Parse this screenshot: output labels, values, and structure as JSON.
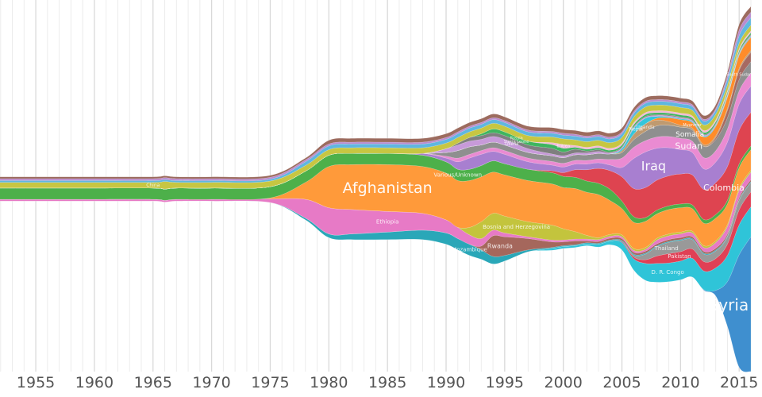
{
  "chart_data": {
    "type": "area",
    "title": "",
    "xlabel": "",
    "ylabel": "",
    "xlim": [
      1951,
      2016
    ],
    "x_ticks": [
      "1955",
      "1960",
      "1965",
      "1970",
      "1975",
      "1980",
      "1985",
      "1990",
      "1995",
      "2000",
      "2005",
      "2010",
      "2015"
    ],
    "grid": true,
    "legend": "none",
    "x": [
      1951,
      1955,
      1960,
      1965,
      1966,
      1967,
      1970,
      1975,
      1978,
      1980,
      1982,
      1985,
      1988,
      1990,
      1991,
      1992,
      1993,
      1994,
      1995,
      1997,
      1999,
      2000,
      2001,
      2002,
      2003,
      2004,
      2005,
      2006,
      2007,
      2008,
      2009,
      2010,
      2011,
      2012,
      2013,
      2014,
      2015,
      2016
    ],
    "series": [
      {
        "name": "Syria",
        "color": "#3f8fcf",
        "label_size": 20,
        "values": [
          0,
          0,
          0,
          0,
          0,
          0,
          0,
          0,
          0,
          0,
          0,
          0,
          0,
          0,
          0,
          0,
          0,
          0,
          0,
          0,
          0,
          0,
          0,
          0,
          0,
          0,
          0,
          0,
          0,
          0,
          0,
          0,
          0,
          0.3,
          3,
          24,
          60,
          72
        ]
      },
      {
        "name": "D. R. Congo",
        "color": "#2fc4d8",
        "label_size": 7,
        "values": [
          0,
          0,
          0,
          0,
          0,
          0,
          0,
          0,
          0,
          0,
          0,
          0,
          0,
          0,
          0,
          0,
          0,
          0,
          0,
          0,
          1,
          1,
          1,
          1,
          1.5,
          2,
          4,
          6,
          9,
          10,
          10,
          10,
          10,
          10,
          12,
          14,
          16,
          16
        ]
      },
      {
        "name": "Pakistan",
        "color": "#e04055",
        "label_size": 7,
        "values": [
          0,
          0,
          0,
          0,
          0,
          0,
          0,
          0,
          0,
          0,
          0,
          0,
          0,
          0,
          0,
          0,
          0,
          0,
          0,
          0,
          0,
          0,
          0,
          0,
          0,
          0,
          0.5,
          1,
          2,
          4,
          5,
          5,
          5,
          5,
          5,
          6,
          8,
          8
        ]
      },
      {
        "name": "Thailand",
        "color": "#999999",
        "label_size": 7,
        "values": [
          0,
          0,
          0,
          0,
          0,
          0,
          0,
          0,
          0,
          0,
          0,
          0,
          0,
          0,
          0,
          0,
          0,
          0,
          0,
          0,
          0,
          0,
          0,
          0,
          0,
          0,
          0,
          1,
          3,
          5,
          6,
          6,
          5,
          4,
          4,
          4,
          5,
          5
        ]
      },
      {
        "name": "Mozambique",
        "color": "#2aa7b8",
        "label_size": 7,
        "values": [
          0,
          0,
          0,
          0,
          0,
          0,
          0,
          0,
          1,
          2,
          3,
          4,
          5,
          6,
          6,
          6,
          5,
          4,
          3,
          1,
          0.5,
          0.5,
          0.5,
          0.5,
          0.5,
          0.5,
          0.5,
          0.5,
          0.5,
          0.5,
          0.5,
          0.5,
          0.5,
          0.5,
          0.5,
          0.5,
          0.5,
          0.5
        ]
      },
      {
        "name": "Rwanda",
        "color": "#a5675c",
        "label_size": 8,
        "values": [
          0,
          0,
          0,
          0,
          0,
          0,
          0,
          0,
          0,
          0,
          0,
          0,
          0,
          0,
          0,
          0,
          2,
          11,
          10,
          6,
          3,
          2,
          2,
          1,
          1,
          1,
          1,
          1,
          1,
          1,
          1,
          1,
          1,
          1,
          1,
          1,
          1,
          1
        ]
      },
      {
        "name": "Ethiopia",
        "color": "#e77ac6",
        "label_size": 7,
        "values": [
          1,
          1,
          1,
          1,
          1,
          1,
          1,
          2,
          10,
          14,
          13,
          11,
          9,
          7,
          6,
          5,
          4,
          3,
          2,
          1,
          1,
          1,
          1,
          1,
          1,
          1,
          1,
          1,
          1,
          2,
          2,
          2,
          2,
          2,
          3,
          4,
          4,
          4
        ]
      },
      {
        "name": "Bosnia and Herzegovina",
        "color": "#c3c43d",
        "label_size": 7,
        "values": [
          0,
          0,
          0,
          0,
          0,
          0,
          0,
          0,
          0,
          0,
          0,
          0,
          0,
          0,
          0,
          4,
          9,
          9,
          9,
          8,
          8,
          6,
          4,
          2,
          1,
          1,
          1,
          1,
          1,
          1,
          1,
          1,
          1,
          1,
          1,
          1,
          1,
          1
        ]
      },
      {
        "name": "Afghanistan",
        "color": "#ff9a3a",
        "label_size": 19,
        "values": [
          0,
          0,
          0,
          0,
          0,
          0,
          0,
          0.5,
          9,
          22,
          24,
          25,
          25,
          25,
          25,
          25,
          24,
          22,
          22,
          22,
          22,
          22,
          23,
          23,
          23,
          18,
          14,
          14,
          14,
          13,
          13,
          13,
          12,
          12,
          12,
          11,
          11,
          11
        ]
      },
      {
        "name": "Various/Unknown",
        "color": "#4db04a",
        "label_size": 7,
        "values": [
          6,
          6,
          6,
          6,
          6,
          6,
          6,
          6,
          6,
          6,
          6,
          6,
          6,
          6,
          6,
          6,
          6,
          6,
          6,
          6,
          6,
          6,
          6,
          6,
          6,
          6,
          4,
          3,
          2,
          2,
          2,
          2,
          2,
          2,
          2,
          2,
          2,
          2
        ]
      },
      {
        "name": "Colombia",
        "color": "#de4450",
        "label_size": 11,
        "values": [
          0,
          0,
          0,
          0,
          0,
          0,
          0,
          0,
          0,
          0,
          0,
          0,
          0,
          0,
          0,
          0,
          0,
          0,
          0,
          0,
          1,
          2,
          4,
          6,
          8,
          10,
          13,
          15,
          16,
          16,
          16,
          16,
          16,
          16,
          17,
          18,
          18,
          18
        ]
      },
      {
        "name": "Iraq",
        "color": "#a87fd0",
        "label_size": 16,
        "values": [
          0,
          0,
          0,
          0,
          0,
          0,
          0,
          0,
          0,
          0,
          0,
          0,
          1,
          2,
          4,
          6,
          6,
          5,
          5,
          4,
          3,
          3,
          3,
          3,
          3,
          3,
          5,
          16,
          19,
          17,
          15,
          13,
          12,
          11,
          11,
          13,
          14,
          14
        ]
      },
      {
        "name": "Sudan",
        "color": "#ea8bd2",
        "label_size": 11,
        "values": [
          0,
          0,
          0,
          0,
          0,
          0,
          0,
          0,
          0,
          0,
          0,
          0,
          0,
          1,
          2,
          2,
          2,
          2,
          2,
          2,
          2,
          2,
          2,
          2,
          2,
          3,
          5,
          6,
          6,
          6,
          6,
          6,
          6,
          6,
          6,
          7,
          7,
          7
        ]
      },
      {
        "name": "Somalia",
        "color": "#8f8f8f",
        "label_size": 9,
        "values": [
          0,
          0,
          0,
          0,
          0,
          0,
          0,
          0,
          0,
          0,
          0,
          0,
          0,
          2,
          4,
          4,
          3,
          3,
          3,
          3,
          3,
          3,
          3,
          3,
          3,
          3,
          3,
          4,
          5,
          6,
          6,
          6,
          6,
          6,
          6,
          6,
          6,
          6
        ]
      },
      {
        "name": "South Sudan",
        "color": "#a66a62",
        "label_size": 5,
        "values": [
          0,
          0,
          0,
          0,
          0,
          0,
          0,
          0,
          0,
          0,
          0,
          0,
          0,
          0,
          0,
          0,
          0,
          0,
          0,
          0,
          0,
          0,
          0,
          0,
          0,
          0,
          0,
          0,
          0,
          0,
          0,
          0,
          0,
          0,
          1,
          4,
          5,
          5
        ]
      },
      {
        "name": "Uganda",
        "color": "#bf9a70",
        "label_size": 6,
        "values": [
          0,
          0,
          0,
          0,
          0,
          0,
          0,
          0,
          0,
          0,
          0,
          0,
          0,
          0,
          0,
          0,
          0,
          0,
          0,
          0,
          0,
          0,
          0,
          0,
          0,
          0,
          1,
          3,
          4,
          3,
          2,
          1,
          1,
          1,
          1,
          1,
          1,
          1
        ]
      },
      {
        "name": "Myanmar",
        "color": "#ff8c2a",
        "label_size": 5,
        "values": [
          0,
          0,
          0,
          0,
          0,
          0,
          0,
          0,
          0,
          0,
          0,
          0,
          0,
          0,
          0,
          0,
          0,
          0,
          0,
          0,
          0,
          0,
          0,
          0,
          0,
          0,
          0,
          0,
          0,
          1,
          2,
          3,
          3,
          4,
          5,
          6,
          7,
          7
        ]
      },
      {
        "name": "Nepal",
        "color": "#33c6dc",
        "label_size": 6,
        "values": [
          0,
          0,
          0,
          0,
          0,
          0,
          0,
          0,
          0,
          0,
          0,
          0,
          0,
          0,
          0,
          0,
          0,
          0,
          0,
          0,
          0,
          0,
          0,
          0,
          0,
          0,
          1,
          3,
          3,
          1,
          0.5,
          0.5,
          0.5,
          0.5,
          0.5,
          0.5,
          0.5,
          0.5
        ]
      },
      {
        "name": "Liberia",
        "color": "#c79ad9",
        "label_size": 5,
        "values": [
          0,
          0,
          0,
          0,
          0,
          0,
          0,
          0,
          0,
          0,
          0,
          0,
          0,
          2,
          3,
          3,
          3,
          3,
          3,
          2,
          1,
          1,
          1,
          1,
          1,
          0.5,
          0.5,
          0.5,
          0.5,
          0.5,
          0.5,
          0.5,
          0.5,
          0.5,
          0.5,
          0.5,
          0.5,
          0.5
        ]
      },
      {
        "name": "Sierra Leone",
        "color": "#7f7f7f",
        "label_size": 5,
        "values": [
          0,
          0,
          0,
          0,
          0,
          0,
          0,
          0,
          0,
          0,
          0,
          0,
          0,
          0,
          1,
          2,
          2,
          2,
          2,
          2,
          3,
          2,
          2,
          1,
          1,
          0.5,
          0.5,
          0.5,
          0.5,
          0.5,
          0.5,
          0.5,
          0.5,
          0.5,
          0.5,
          0.5,
          0.5,
          0.5
        ]
      },
      {
        "name": "Russia",
        "color": "#3fb55f",
        "label_size": 5,
        "values": [
          0,
          0,
          0,
          0,
          0,
          0,
          0,
          0,
          0,
          0,
          0,
          0,
          0,
          0,
          0,
          0,
          1,
          2,
          2,
          2,
          2,
          2,
          1,
          1,
          1,
          1,
          1,
          1,
          1,
          1,
          1,
          1,
          1,
          1,
          1,
          1,
          1,
          1
        ]
      },
      {
        "name": "Eritrea",
        "color": "#f2b8d8",
        "label_size": 5,
        "values": [
          0,
          0,
          0,
          0,
          0,
          0,
          0,
          0,
          0,
          0,
          0,
          0,
          0,
          0,
          0,
          0,
          0,
          0,
          0,
          0,
          1,
          2,
          1,
          1,
          1,
          1,
          1,
          1,
          1,
          1,
          1,
          1,
          1,
          1,
          1,
          1,
          1,
          1
        ]
      },
      {
        "name": "China",
        "color": "#c7c642",
        "label_size": 6,
        "values": [
          3,
          3,
          3,
          3,
          4,
          3,
          3,
          3,
          3,
          3,
          3,
          3,
          3,
          3,
          3,
          3,
          3,
          3,
          3,
          3,
          3,
          3,
          3,
          3,
          3,
          3,
          3,
          3,
          3,
          3,
          3,
          3,
          3,
          3,
          3,
          3,
          3,
          3
        ]
      },
      {
        "name": "",
        "color": "#5fb7e0",
        "values": [
          1,
          1,
          1,
          1,
          1,
          1,
          1,
          1,
          2,
          2,
          2,
          2,
          2,
          2,
          2,
          2,
          2,
          2,
          2,
          2,
          2,
          2,
          2,
          2,
          2,
          2,
          2,
          2,
          2,
          2,
          2,
          2,
          2,
          2,
          2,
          3,
          4,
          4
        ]
      },
      {
        "name": "",
        "color": "#b98ccf",
        "values": [
          1,
          1,
          1,
          1,
          1,
          1,
          1,
          1,
          1,
          1,
          1,
          1,
          1,
          1,
          1,
          1,
          1,
          1,
          1,
          1,
          1,
          1,
          1,
          1,
          1,
          1,
          1,
          1,
          1,
          1,
          1,
          1,
          1,
          1,
          1,
          2,
          3,
          3
        ]
      },
      {
        "name": "",
        "color": "#9c6b5e",
        "values": [
          1,
          1,
          1,
          1,
          1,
          1,
          1,
          1,
          1,
          2,
          2,
          2,
          2,
          2,
          2,
          2,
          2,
          2,
          2,
          2,
          2,
          2,
          2,
          2,
          2,
          2,
          2,
          2,
          2,
          2,
          2,
          2,
          2,
          2,
          2,
          2,
          3,
          3
        ]
      }
    ],
    "labels": [
      {
        "series": "China",
        "text": "China",
        "x": 1965
      },
      {
        "series": "Afghanistan",
        "text": "Afghanistan",
        "x": 1985
      },
      {
        "series": "Various/Unknown",
        "text": "Various/Unknown",
        "x": 1991
      },
      {
        "series": "Ethiopia",
        "text": "Ethiopia",
        "x": 1985
      },
      {
        "series": "Mozambique",
        "text": "Mozambique",
        "x": 1992
      },
      {
        "series": "Bosnia and Herzegovina",
        "text": "Bosnia and Herzegovina",
        "x": 1996
      },
      {
        "series": "Rwanda",
        "text": "Rwanda",
        "x": 1994.6
      },
      {
        "series": "Sierra Leone",
        "text": "Sierra Leone",
        "x": 1996
      },
      {
        "series": "Liberia",
        "text": "Liberia",
        "x": 1995.6
      },
      {
        "series": "Russia",
        "text": "Russia",
        "x": 1996
      },
      {
        "series": "Eritrea",
        "text": "Eritrea",
        "x": 2000
      },
      {
        "series": "Nepal",
        "text": "Nepal",
        "x": 2006.2
      },
      {
        "series": "Uganda",
        "text": "Uganda",
        "x": 2007
      },
      {
        "series": "Myanmar",
        "text": "Myanmar",
        "x": 2011
      },
      {
        "series": "Somalia",
        "text": "Somalia",
        "x": 2010.8
      },
      {
        "series": "Sudan",
        "text": "Sudan",
        "x": 2010.7
      },
      {
        "series": "Iraq",
        "text": "Iraq",
        "x": 2007.7
      },
      {
        "series": "Colombia",
        "text": "Colombia",
        "x": 2013.7
      },
      {
        "series": "D. R. Congo",
        "text": "D. R. Congo",
        "x": 2008.9
      },
      {
        "series": "Syria",
        "text": "Syria",
        "x": 2014.1
      },
      {
        "series": "Pakistan",
        "text": "Pakistan",
        "x": 2009.9
      },
      {
        "series": "Thailand",
        "text": "Thailand",
        "x": 2008.8
      },
      {
        "series": "South Sudan",
        "text": "South Sudan",
        "x": 2015
      }
    ]
  }
}
